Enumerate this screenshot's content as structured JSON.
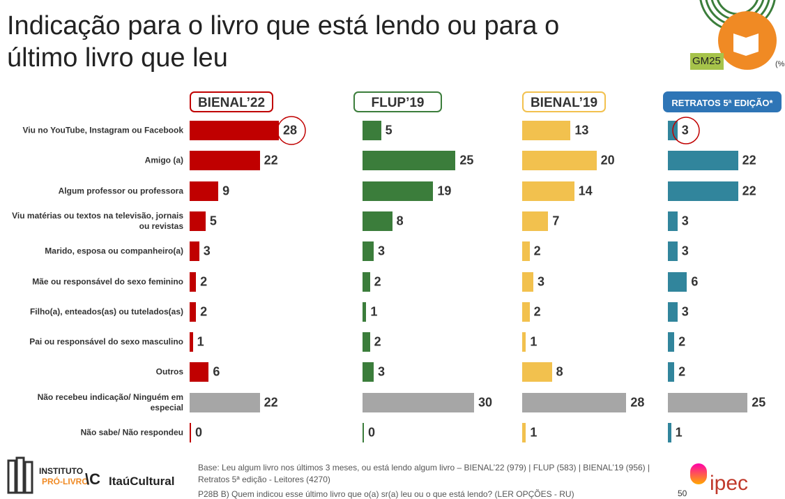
{
  "header": {
    "title": "Indicação para o livro que está lendo ou para o último livro que leu",
    "badge": "GM25",
    "unit": "(%"
  },
  "chart_data": {
    "type": "bar",
    "categories": [
      "Viu no YouTube, Instagram ou Facebook",
      "Amigo (a)",
      "Algum professor ou professora",
      "Viu matérias ou textos na televisão, jornais\nou revistas",
      "Marido, esposa ou companheiro(a)",
      "Mãe ou responsável do sexo feminino",
      "Filho(a), enteados(as) ou tutelados(as)",
      "Pai ou responsável do sexo masculino",
      "Outros",
      "Não recebeu indicação/ Ninguém em\nespecial",
      "Não sabe/ Não respondeu"
    ],
    "series": [
      {
        "name": "BIENAL’22",
        "xlim": [
          0,
          35
        ],
        "values": [
          28,
          22,
          9,
          5,
          3,
          2,
          2,
          1,
          6,
          22,
          0
        ],
        "colors": [
          "#c00000",
          "#c00000",
          "#c00000",
          "#c00000",
          "#c00000",
          "#c00000",
          "#c00000",
          "#c00000",
          "#c00000",
          "#a6a6a6",
          "#c00000"
        ]
      },
      {
        "name": "FLUP’19",
        "xlim": [
          0,
          30
        ],
        "values": [
          5,
          25,
          19,
          8,
          3,
          2,
          1,
          2,
          3,
          30,
          0
        ],
        "colors": [
          "#3b7d3b",
          "#3b7d3b",
          "#3b7d3b",
          "#3b7d3b",
          "#3b7d3b",
          "#3b7d3b",
          "#3b7d3b",
          "#3b7d3b",
          "#3b7d3b",
          "#a6a6a6",
          "#3b7d3b"
        ]
      },
      {
        "name": "BIENAL’19",
        "xlim": [
          0,
          30
        ],
        "values": [
          13,
          20,
          14,
          7,
          2,
          3,
          2,
          1,
          8,
          28,
          1
        ],
        "colors": [
          "#f2c14e",
          "#f2c14e",
          "#f2c14e",
          "#f2c14e",
          "#f2c14e",
          "#f2c14e",
          "#f2c14e",
          "#f2c14e",
          "#f2c14e",
          "#a6a6a6",
          "#f2c14e"
        ]
      },
      {
        "name": "RETRATOS 5ª EDIÇÃO*",
        "xlim": [
          0,
          35
        ],
        "values": [
          3,
          22,
          22,
          3,
          3,
          6,
          3,
          2,
          2,
          25,
          1
        ],
        "colors": [
          "#31859c",
          "#31859c",
          "#31859c",
          "#31859c",
          "#31859c",
          "#31859c",
          "#31859c",
          "#31859c",
          "#31859c",
          "#a6a6a6",
          "#31859c"
        ]
      }
    ]
  },
  "footer": {
    "base": "Base: Leu algum livro nos últimos 3 meses, ou está lendo algum livro – BIENAL’22 (979) | FLUP (583) | BIENAL’19 (956) | Retratos  5ª edição - Leitores (4270)",
    "question": "P28B  B) Quem indicou esse último livro que o(a) sr(a) leu ou o que está lendo? (LER OPÇÕES - RU)",
    "logo1a": "INSTITUTO",
    "logo1b": "PRÓ-LIVRO",
    "logo2": "ItaúCultural",
    "logo3": "ipec",
    "page": "50"
  }
}
